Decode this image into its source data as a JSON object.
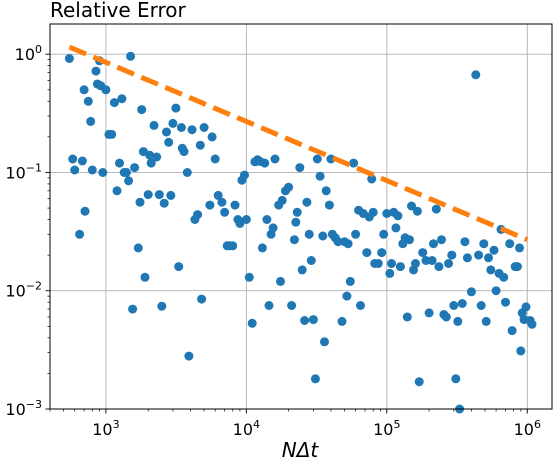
{
  "chart_data": {
    "type": "scatter",
    "title": "Relative Error",
    "xlabel": "NΔt",
    "ylabel": "",
    "xscale": "log",
    "yscale": "log",
    "xlim": [
      400,
      1500000
    ],
    "ylim": [
      0.001,
      1.8
    ],
    "grid": true,
    "x_ticks": [
      {
        "value": 1000,
        "base": "10",
        "exp": "3"
      },
      {
        "value": 10000,
        "base": "10",
        "exp": "4"
      },
      {
        "value": 100000,
        "base": "10",
        "exp": "5"
      },
      {
        "value": 1000000,
        "base": "10",
        "exp": "6"
      }
    ],
    "y_ticks": [
      {
        "value": 1,
        "base": "10",
        "exp": "0"
      },
      {
        "value": 0.1,
        "base": "10",
        "exp": "−1"
      },
      {
        "value": 0.01,
        "base": "10",
        "exp": "−2"
      },
      {
        "value": 0.001,
        "base": "10",
        "exp": "−3"
      }
    ],
    "colors": {
      "points": "#1f77b4",
      "reference": "#ff7f0e",
      "grid": "#b0b0b0"
    },
    "series": [
      {
        "style": "markers",
        "points": [
          [
            550,
            0.92
          ],
          [
            580,
            0.13
          ],
          [
            600,
            0.105
          ],
          [
            650,
            0.03
          ],
          [
            680,
            0.125
          ],
          [
            700,
            0.5
          ],
          [
            710,
            0.047
          ],
          [
            750,
            0.4
          ],
          [
            780,
            0.27
          ],
          [
            800,
            0.105
          ],
          [
            850,
            0.72
          ],
          [
            870,
            0.56
          ],
          [
            900,
            0.88
          ],
          [
            920,
            0.54
          ],
          [
            950,
            0.1
          ],
          [
            1000,
            0.5
          ],
          [
            1050,
            0.21
          ],
          [
            1100,
            0.21
          ],
          [
            1150,
            0.39
          ],
          [
            1200,
            0.07
          ],
          [
            1250,
            0.12
          ],
          [
            1300,
            0.42
          ],
          [
            1350,
            0.1
          ],
          [
            1400,
            0.1
          ],
          [
            1450,
            0.085
          ],
          [
            1500,
            0.96
          ],
          [
            1550,
            0.007
          ],
          [
            1600,
            0.11
          ],
          [
            1700,
            0.023
          ],
          [
            1750,
            0.056
          ],
          [
            1800,
            0.34
          ],
          [
            1850,
            0.15
          ],
          [
            1900,
            0.013
          ],
          [
            2000,
            0.065
          ],
          [
            2050,
            0.14
          ],
          [
            2100,
            0.12
          ],
          [
            2200,
            0.25
          ],
          [
            2300,
            0.135
          ],
          [
            2400,
            0.065
          ],
          [
            2500,
            0.0074
          ],
          [
            2600,
            0.055
          ],
          [
            2700,
            0.22
          ],
          [
            2800,
            0.18
          ],
          [
            2900,
            0.064
          ],
          [
            3000,
            0.26
          ],
          [
            3150,
            0.35
          ],
          [
            3300,
            0.016
          ],
          [
            3450,
            0.24
          ],
          [
            3500,
            0.16
          ],
          [
            3600,
            0.15
          ],
          [
            3800,
            0.1
          ],
          [
            3900,
            0.0028
          ],
          [
            4100,
            0.23
          ],
          [
            4300,
            0.04
          ],
          [
            4500,
            0.044
          ],
          [
            4700,
            0.17
          ],
          [
            4800,
            0.0085
          ],
          [
            5000,
            0.24
          ],
          [
            5500,
            0.053
          ],
          [
            5700,
            0.2
          ],
          [
            6000,
            0.13
          ],
          [
            6300,
            0.064
          ],
          [
            6700,
            0.056
          ],
          [
            7000,
            0.046
          ],
          [
            7300,
            0.024
          ],
          [
            7600,
            0.024
          ],
          [
            8000,
            0.024
          ],
          [
            8300,
            0.053
          ],
          [
            8700,
            0.04
          ],
          [
            9000,
            0.037
          ],
          [
            9300,
            0.086
          ],
          [
            9700,
            0.095
          ],
          [
            10000,
            0.04
          ],
          [
            10500,
            0.013
          ],
          [
            11000,
            0.0053
          ],
          [
            11500,
            0.123
          ],
          [
            12000,
            0.128
          ],
          [
            12500,
            0.124
          ],
          [
            13000,
            0.023
          ],
          [
            13500,
            0.12
          ],
          [
            14000,
            0.04
          ],
          [
            14500,
            0.0075
          ],
          [
            15000,
            0.03
          ],
          [
            15500,
            0.034
          ],
          [
            16000,
            0.13
          ],
          [
            17000,
            0.053
          ],
          [
            17500,
            0.012
          ],
          [
            18000,
            0.058
          ],
          [
            19000,
            0.07
          ],
          [
            20000,
            0.075
          ],
          [
            21000,
            0.0075
          ],
          [
            22000,
            0.027
          ],
          [
            22500,
            0.038
          ],
          [
            23000,
            0.046
          ],
          [
            24000,
            0.11
          ],
          [
            25000,
            0.015
          ],
          [
            26000,
            0.0056
          ],
          [
            27000,
            0.056
          ],
          [
            28000,
            0.03
          ],
          [
            29000,
            0.018
          ],
          [
            30000,
            0.0057
          ],
          [
            31000,
            0.0018
          ],
          [
            32000,
            0.13
          ],
          [
            33500,
            0.093
          ],
          [
            35000,
            0.029
          ],
          [
            36000,
            0.0037
          ],
          [
            37000,
            0.07
          ],
          [
            39000,
            0.053
          ],
          [
            40000,
            0.13
          ],
          [
            41000,
            0.03
          ],
          [
            43000,
            0.028
          ],
          [
            45000,
            0.026
          ],
          [
            48000,
            0.0055
          ],
          [
            50000,
            0.026
          ],
          [
            52000,
            0.009
          ],
          [
            53000,
            0.025
          ],
          [
            55000,
            0.012
          ],
          [
            58000,
            0.12
          ],
          [
            60000,
            0.03
          ],
          [
            63000,
            0.048
          ],
          [
            65000,
            0.0075
          ],
          [
            68000,
            0.045
          ],
          [
            72000,
            0.021
          ],
          [
            75000,
            0.042
          ],
          [
            78000,
            0.088
          ],
          [
            80000,
            0.046
          ],
          [
            82000,
            0.017
          ],
          [
            87000,
            0.017
          ],
          [
            92000,
            0.021
          ],
          [
            95000,
            0.03
          ],
          [
            100000,
            0.045
          ],
          [
            105000,
            0.014
          ],
          [
            108000,
            0.017
          ],
          [
            112000,
            0.046
          ],
          [
            116000,
            0.034
          ],
          [
            120000,
            0.043
          ],
          [
            125000,
            0.016
          ],
          [
            130000,
            0.025
          ],
          [
            135000,
            0.028
          ],
          [
            140000,
            0.006
          ],
          [
            145000,
            0.027
          ],
          [
            150000,
            0.052
          ],
          [
            155000,
            0.015
          ],
          [
            160000,
            0.017
          ],
          [
            165000,
            0.047
          ],
          [
            170000,
            0.0017
          ],
          [
            180000,
            0.021
          ],
          [
            190000,
            0.018
          ],
          [
            200000,
            0.0065
          ],
          [
            210000,
            0.018
          ],
          [
            215000,
            0.025
          ],
          [
            225000,
            0.049
          ],
          [
            235000,
            0.016
          ],
          [
            245000,
            0.027
          ],
          [
            255000,
            0.0063
          ],
          [
            265000,
            0.006
          ],
          [
            275000,
            0.017
          ],
          [
            290000,
            0.02
          ],
          [
            300000,
            0.0075
          ],
          [
            310000,
            0.0018
          ],
          [
            320000,
            0.0055
          ],
          [
            330000,
            0.001
          ],
          [
            345000,
            0.0078
          ],
          [
            360000,
            0.026
          ],
          [
            375000,
            0.019
          ],
          [
            400000,
            0.0098
          ],
          [
            430000,
            0.67
          ],
          [
            450000,
            0.02
          ],
          [
            470000,
            0.0075
          ],
          [
            490000,
            0.025
          ],
          [
            510000,
            0.0055
          ],
          [
            530000,
            0.019
          ],
          [
            550000,
            0.015
          ],
          [
            580000,
            0.022
          ],
          [
            600000,
            0.01
          ],
          [
            630000,
            0.014
          ],
          [
            650000,
            0.033
          ],
          [
            680000,
            0.013
          ],
          [
            700000,
            0.008
          ],
          [
            750000,
            0.025
          ],
          [
            780000,
            0.0046
          ],
          [
            820000,
            0.016
          ],
          [
            850000,
            0.016
          ],
          [
            880000,
            0.023
          ],
          [
            900000,
            0.0031
          ],
          [
            920000,
            0.0065
          ],
          [
            950000,
            0.0057
          ],
          [
            980000,
            0.0073
          ],
          [
            1050000,
            0.0056
          ],
          [
            1080000,
            0.0052
          ]
        ]
      },
      {
        "style": "dashed-line",
        "points": [
          [
            550,
            1.15
          ],
          [
            1000000,
            0.027
          ]
        ]
      }
    ]
  }
}
